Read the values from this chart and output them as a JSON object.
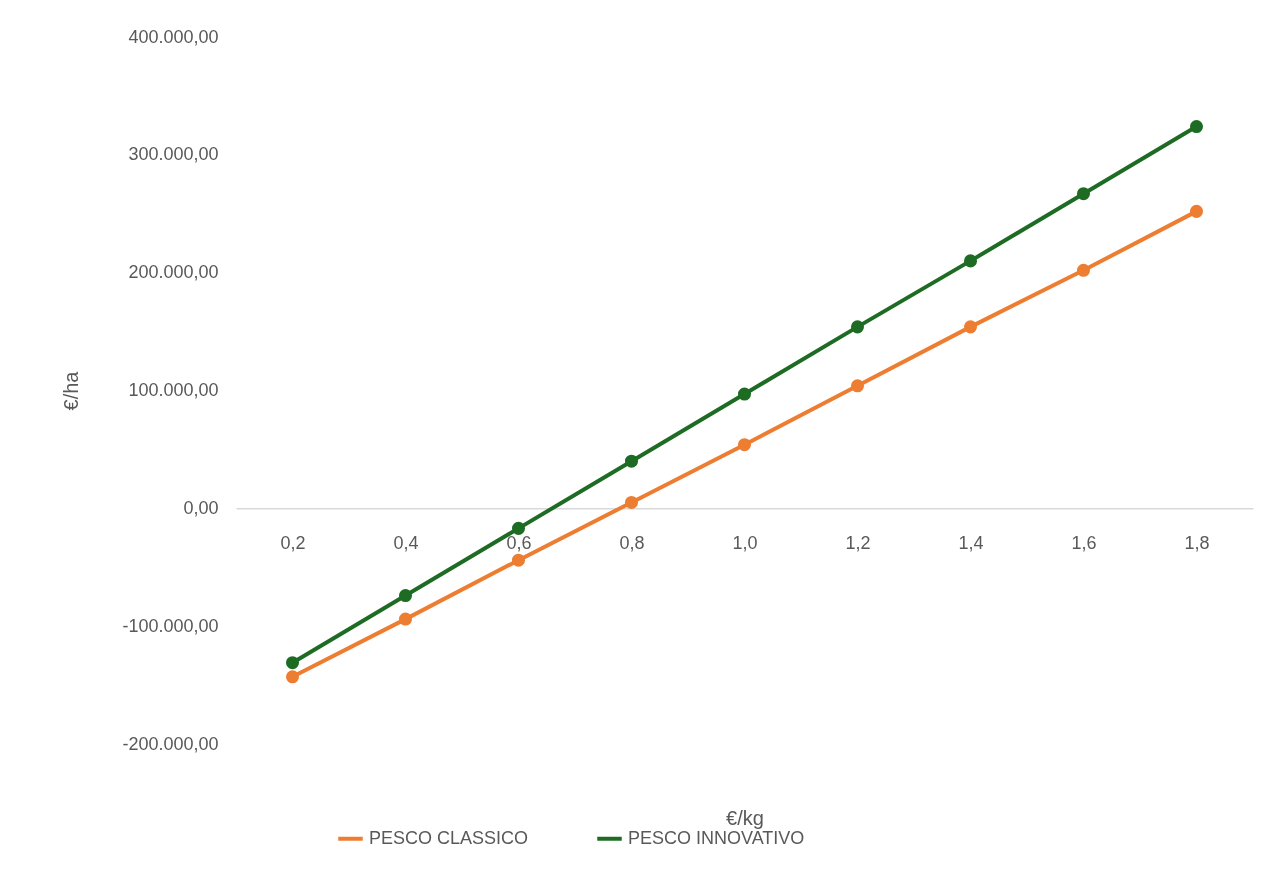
{
  "chart_data": {
    "type": "line",
    "xlabel": "€/kg",
    "ylabel": "€/ha",
    "categories": [
      "0,2",
      "0,4",
      "0,6",
      "0,8",
      "1,0",
      "1,2",
      "1,4",
      "1,6",
      "1,8"
    ],
    "series": [
      {
        "name": "PESCO CLASSICO",
        "color": "#ed7d31",
        "values": [
          -143000,
          -94000,
          -44000,
          5000,
          54000,
          104000,
          154000,
          202000,
          252000
        ]
      },
      {
        "name": "PESCO INNOVATIVO",
        "color": "#1e6b24",
        "values": [
          -131000,
          -74000,
          -17000,
          40000,
          97000,
          154000,
          210000,
          267000,
          324000
        ]
      }
    ],
    "ylim": [
      -200000,
      400000
    ],
    "yticks": [
      {
        "value": -200000,
        "label": "-200.000,00"
      },
      {
        "value": -100000,
        "label": "-100.000,00"
      },
      {
        "value": 0,
        "label": "0,00"
      },
      {
        "value": 100000,
        "label": "100.000,00"
      },
      {
        "value": 200000,
        "label": "200.000,00"
      },
      {
        "value": 300000,
        "label": "300.000,00"
      },
      {
        "value": 400000,
        "label": "400.000,00"
      }
    ],
    "grid": false,
    "legend": "bottom",
    "marker": "circle",
    "line_style": "solid"
  }
}
